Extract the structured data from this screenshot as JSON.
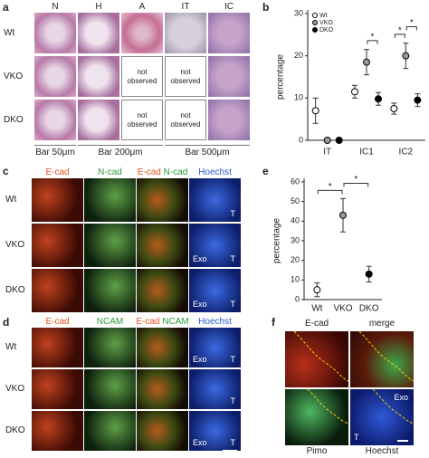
{
  "panel_labels": [
    "a",
    "b",
    "c",
    "d",
    "e",
    "f"
  ],
  "panel_a": {
    "columns": [
      "N",
      "H",
      "A",
      "IT",
      "IC"
    ],
    "rows": [
      "Wt",
      "VKO",
      "DKO"
    ],
    "cells": [
      [
        null,
        null,
        null,
        null,
        null
      ],
      [
        null,
        null,
        "not observed",
        "not observed",
        null
      ],
      [
        null,
        null,
        "not observed",
        "not observed",
        null
      ]
    ],
    "scale_bars": [
      "Bar 50μm",
      "Bar 200μm",
      "Bar 500μm"
    ]
  },
  "panel_c": {
    "column_headers": [
      [
        "E-cad"
      ],
      [
        "N-cad"
      ],
      [
        "E-cad",
        "N-cad"
      ],
      [
        "Hoechst"
      ]
    ],
    "header_colors": [
      [
        "#e8501e"
      ],
      [
        "#2f9a3c"
      ],
      [
        "#e8501e",
        "#2f9a3c"
      ],
      [
        "#2a5ad0"
      ]
    ],
    "rows": [
      "Wt",
      "VKO",
      "DKO"
    ],
    "overlay_labels": [
      [
        "T"
      ],
      [
        "Exo",
        "T"
      ],
      [
        "Exo",
        "T"
      ]
    ]
  },
  "panel_d": {
    "column_headers": [
      [
        "E-cad"
      ],
      [
        "NCAM"
      ],
      [
        "E-cad",
        "NCAM"
      ],
      [
        "Hoechst"
      ]
    ],
    "header_colors": [
      [
        "#e8501e"
      ],
      [
        "#2f9a3c"
      ],
      [
        "#e8501e",
        "#2f9a3c"
      ],
      [
        "#2a5ad0"
      ]
    ],
    "rows": [
      "Wt",
      "VKO",
      "DKO"
    ],
    "overlay_labels": [
      [
        "Exo",
        "T"
      ],
      [
        "T"
      ],
      [
        "Exo",
        "T"
      ]
    ]
  },
  "panel_f": {
    "top_headers": [
      "E-cad",
      "merge"
    ],
    "bottom_labels": [
      "Pimo",
      "Hoechst"
    ],
    "overlay_labels": [
      "Exo",
      "T"
    ]
  },
  "chart_data": [
    {
      "type": "dot",
      "ylabel": "percentage",
      "categories": [
        "IT",
        "IC1",
        "IC2"
      ],
      "series": [
        {
          "name": "Wt",
          "color": "#ffffff",
          "values": [
            7,
            11.5,
            7.5
          ],
          "errors": [
            3,
            1.5,
            1.3
          ]
        },
        {
          "name": "VKO",
          "color": "#9a9a9a",
          "values": [
            0,
            18.5,
            20
          ],
          "errors": [
            0,
            3,
            3
          ]
        },
        {
          "name": "DKO",
          "color": "#000000",
          "values": [
            0,
            9.8,
            9.5
          ],
          "errors": [
            0,
            1.5,
            1.5
          ]
        }
      ],
      "ylim": [
        0,
        30
      ],
      "yticks": [
        0,
        10,
        20,
        30
      ],
      "legend": "top-left",
      "brackets": [
        {
          "text": "*",
          "category": "IC1",
          "from": "VKO",
          "to": "DKO"
        },
        {
          "text": "*",
          "category": "IC2",
          "from": "Wt",
          "to": "VKO"
        },
        {
          "text": "*",
          "category": "IC2",
          "from": "VKO",
          "to": "DKO"
        }
      ]
    },
    {
      "type": "dot",
      "ylabel": "percentage",
      "categories": [
        "Wt",
        "VKO",
        "DKO"
      ],
      "series": [
        {
          "colors": [
            "#ffffff",
            "#9a9a9a",
            "#000000"
          ],
          "values": [
            5,
            43,
            13
          ],
          "errors": [
            3.5,
            8.5,
            4
          ]
        }
      ],
      "ylim": [
        0,
        60
      ],
      "yticks": [
        0,
        10,
        20,
        30,
        40,
        50,
        60
      ],
      "brackets": [
        {
          "text": "*",
          "from": "Wt",
          "to": "VKO"
        },
        {
          "text": "*",
          "from": "VKO",
          "to": "DKO"
        }
      ]
    }
  ]
}
